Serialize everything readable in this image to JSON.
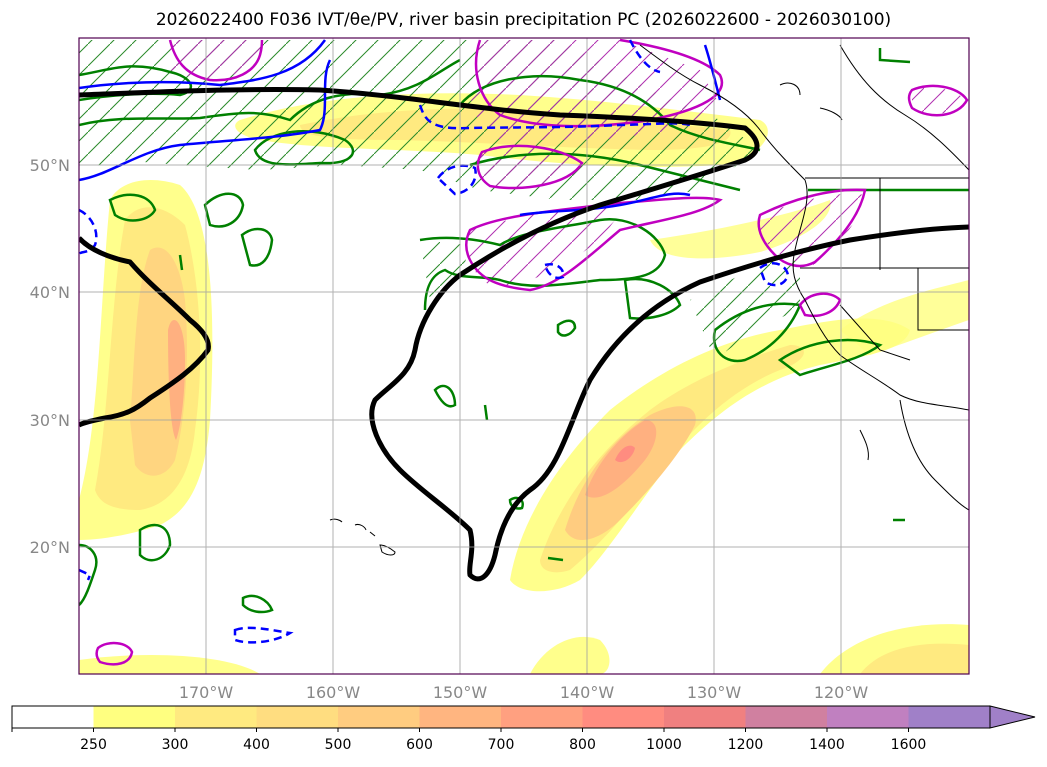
{
  "title": "2026022400 F036 IVT/θe/PV, river basin precipitation PC (2026022600 - 2026030100)",
  "lat_labels": [
    "50°N",
    "40°N",
    "30°N",
    "20°N"
  ],
  "lon_labels": [
    "170°W",
    "160°W",
    "150°W",
    "140°W",
    "130°W",
    "120°W"
  ],
  "colorbar": {
    "ticks": [
      "250",
      "300",
      "400",
      "500",
      "600",
      "700",
      "800",
      "1000",
      "1200",
      "1400",
      "1600"
    ],
    "colors": [
      "#ffffff",
      "#ffff80",
      "#ffea80",
      "#ffdd80",
      "#ffcc80",
      "#ffb580",
      "#ffa080",
      "#ff8c80",
      "#f08080",
      "#d080a0",
      "#c080c0",
      "#a080c8"
    ]
  },
  "legend_colors": {
    "ivt_black": "#000000",
    "theta_e_blue": "#0000ff",
    "pv_green": "#008000",
    "pv_magenta": "#c000c0"
  }
}
